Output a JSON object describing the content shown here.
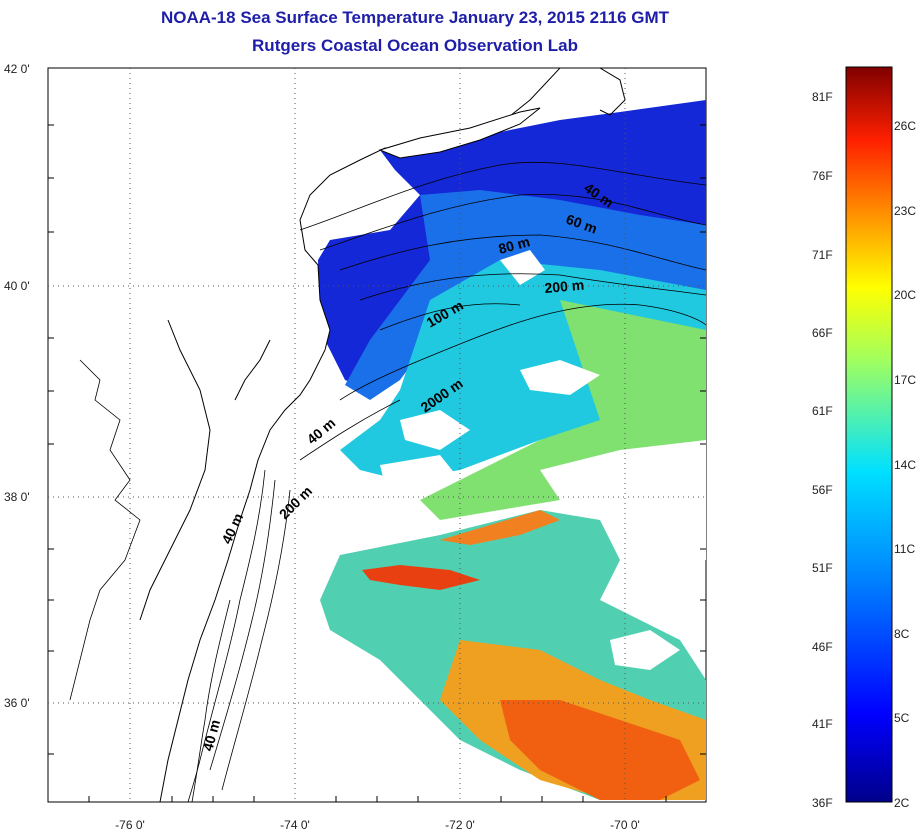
{
  "title": {
    "line1": "NOAA-18 Sea Surface Temperature January 23, 2015 2116 GMT",
    "line2": "Rutgers Coastal Ocean Observation Lab"
  },
  "map": {
    "x_ticks": [
      "-76 0'",
      "-74 0'",
      "-72 0'",
      "-70 0'"
    ],
    "y_ticks": [
      "42 0'",
      "40 0'",
      "38 0'",
      "36 0'"
    ],
    "depth_labels": {
      "d40_ne": "40 m",
      "d60": "60 m",
      "d80": "80 m",
      "d200_ne": "200 m",
      "d100": "100 m",
      "d2000": "2000 m",
      "d40_mid": "40 m",
      "d200_sw": "200 m",
      "d40_s1": "40 m",
      "d40_s2": "40 m"
    }
  },
  "colorbar": {
    "fahrenheit": [
      "81F",
      "76F",
      "71F",
      "66F",
      "61F",
      "56F",
      "51F",
      "46F",
      "41F",
      "36F"
    ],
    "celsius": [
      "26C",
      "23C",
      "20C",
      "17C",
      "14C",
      "11C",
      "8C",
      "5C",
      "2C"
    ]
  }
}
